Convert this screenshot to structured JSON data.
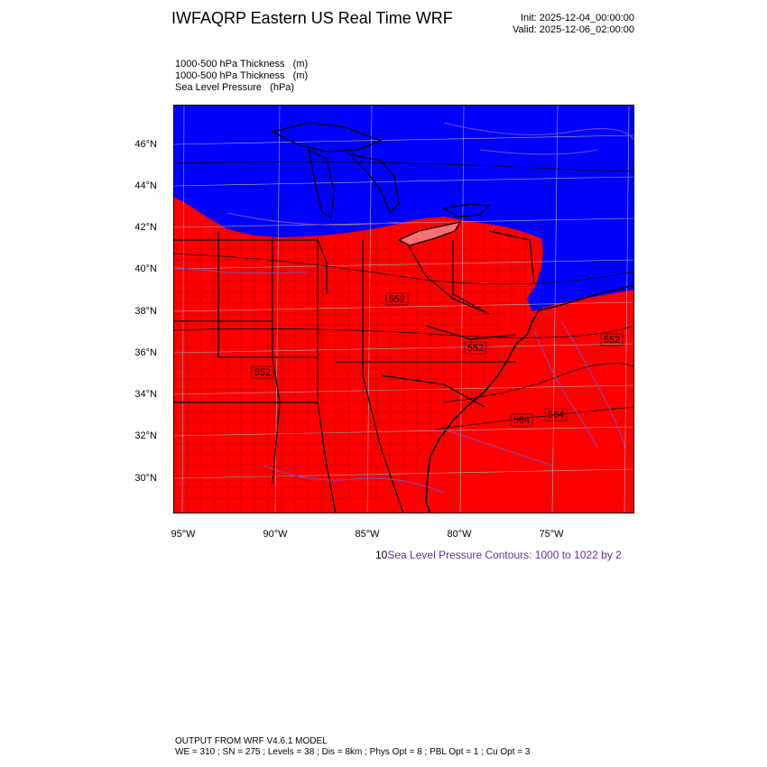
{
  "header": {
    "title": "IWFAQRP Eastern US Real Time WRF",
    "init": "Init: 2025-12-04_00:00:00",
    "valid": "Valid: 2025-12-06_02:00:00"
  },
  "fields": [
    "1000-500 hPa Thickness   (m)",
    "1000-500 hPa Thickness   (m)",
    "Sea Level Pressure   (hPa)"
  ],
  "map": {
    "lat_labels": [
      "46°N",
      "44°N",
      "42°N",
      "40°N",
      "38°N",
      "36°N",
      "34°N",
      "32°N",
      "30°N"
    ],
    "lon_labels": [
      "95°W",
      "90°W",
      "85°W",
      "80°W",
      "75°W"
    ],
    "thickness_labels": [
      "552",
      "552",
      "552",
      "552",
      "564",
      "564"
    ],
    "colors": {
      "warm": "#ff0000",
      "cold": "#0000ff",
      "contour": "#7a4fc0",
      "border": "#000000"
    }
  },
  "contour_note": {
    "prefix": "10",
    "text": "Sea Level Pressure Contours: 1000 to 1022 by 2"
  },
  "footer": {
    "line1": "OUTPUT FROM WRF V4.6.1 MODEL",
    "line2": "WE = 310 ; SN = 275 ; Levels = 38 ; Dis = 8km ; Phys Opt = 8 ; PBL Opt = 1 ; Cu Opt = 3"
  }
}
